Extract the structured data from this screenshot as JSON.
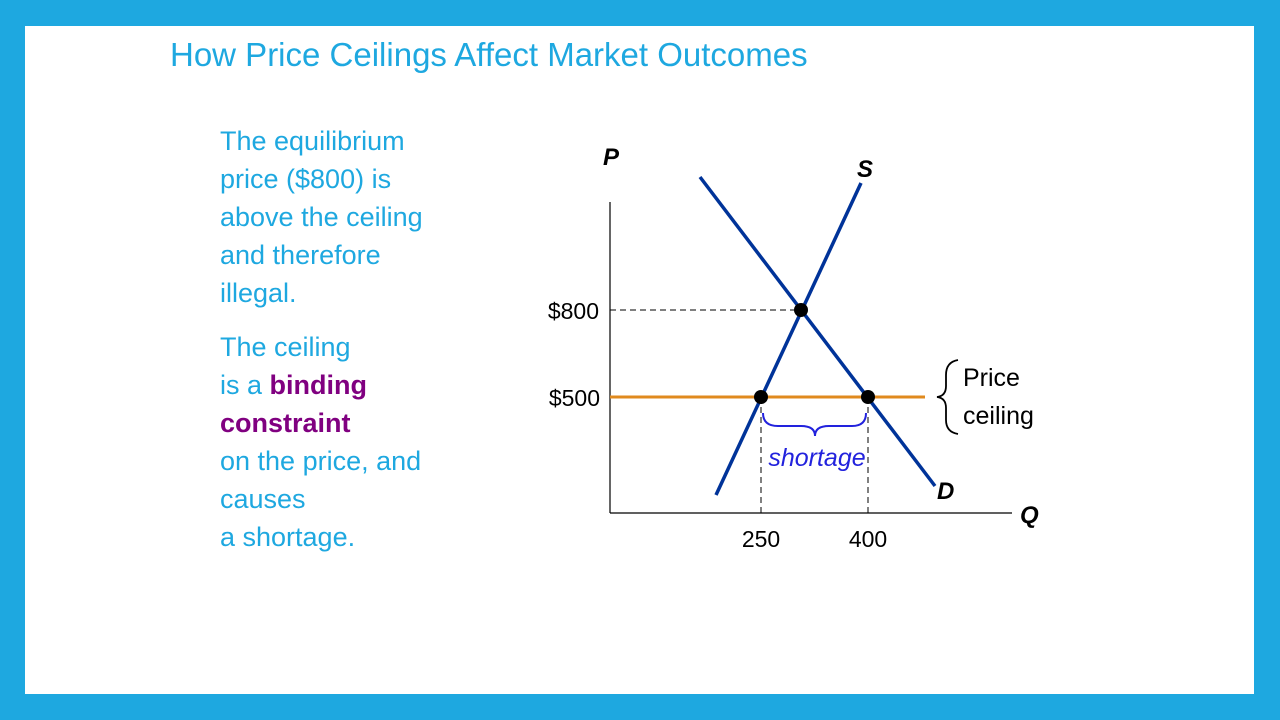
{
  "slide": {
    "title": "How Price Ceilings Affect Market Outcomes",
    "paragraph1": {
      "lines": [
        "The equilibrium",
        "price ($800) is",
        "above the ceiling",
        "and therefore",
        "illegal."
      ]
    },
    "paragraph2": {
      "line1": "The ceiling",
      "line2_prefix": "is a ",
      "line2_emphasis": "binding",
      "line3_emphasis": "constraint",
      "line4": "on the price, and",
      "line5": "causes",
      "line6": "a shortage."
    }
  },
  "diagram": {
    "axis_y_label": "P",
    "axis_x_label": "Q",
    "supply_label": "S",
    "demand_label": "D",
    "price_ticks": [
      "$800",
      "$500"
    ],
    "quantity_ticks": [
      "250",
      "400"
    ],
    "equilibrium_price": 800,
    "ceiling_price": 500,
    "quantity_supplied_at_ceiling": 250,
    "quantity_demanded_at_ceiling": 400,
    "ceiling_label_line1": "Price",
    "ceiling_label_line2": "ceiling",
    "shortage_label": "shortage",
    "colors": {
      "curves": "#003399",
      "ceiling": "#e08a1e",
      "shortage": "#2222dd",
      "text": "#1ea8e0",
      "emphasis": "#800080"
    }
  }
}
